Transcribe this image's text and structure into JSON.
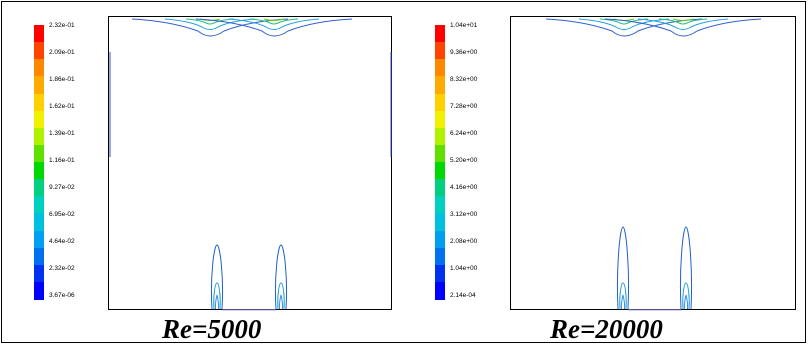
{
  "panels": [
    {
      "id": "re5000",
      "caption": "Re=5000",
      "colorbar_labels": [
        "2.32e-01",
        "2.09e-01",
        "1.86e-01",
        "1.62e-01",
        "1.39e-01",
        "1.16e-01",
        "9.27e-02",
        "6.95e-02",
        "4.64e-02",
        "2.32e-02",
        "3.67e-06"
      ],
      "has_side_wall_contours": true
    },
    {
      "id": "re20000",
      "caption": "Re=20000",
      "colorbar_labels": [
        "1.04e+01",
        "9.36e+00",
        "8.32e+00",
        "7.28e+00",
        "6.24e+00",
        "5.20e+00",
        "4.16e+00",
        "3.12e+00",
        "2.08e+00",
        "1.04e+00",
        "2.14e-04"
      ],
      "has_side_wall_contours": false
    }
  ],
  "colormap": [
    "#ff0000",
    "#ff4400",
    "#ff8800",
    "#ffaa00",
    "#ffd000",
    "#f0f000",
    "#b0f000",
    "#60e000",
    "#00d800",
    "#00d080",
    "#00d0c0",
    "#00c0e0",
    "#00a0f0",
    "#0070f0",
    "#0030f0",
    "#0000ff"
  ]
}
